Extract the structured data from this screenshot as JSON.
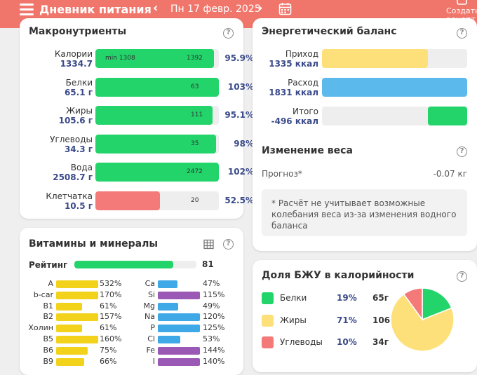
{
  "header": {
    "title": "Дневник питания",
    "prev": "‹",
    "next": "›",
    "date": "Пн 17 февр. 2025",
    "create_label": "Создать рецепт"
  },
  "macros": {
    "title": "Макронутриенты",
    "rows": [
      {
        "label": "Калории",
        "value": "1334.7",
        "target": "1392",
        "min": "min 1308",
        "percent": "95.9%",
        "fill": 0.959,
        "color": "#22d46a"
      },
      {
        "label": "Белки",
        "value": "65.1 г",
        "target": "63",
        "percent": "103%",
        "fill": 1.0,
        "color": "#22d46a"
      },
      {
        "label": "Жиры",
        "value": "105.6 г",
        "target": "111",
        "percent": "95.1%",
        "fill": 0.951,
        "color": "#22d46a"
      },
      {
        "label": "Углеводы",
        "value": "34.3 г",
        "target": "35",
        "percent": "98%",
        "fill": 0.98,
        "color": "#22d46a"
      },
      {
        "label": "Вода",
        "value": "2508.7 г",
        "target": "2472",
        "percent": "102%",
        "fill": 1.0,
        "color": "#22d46a"
      },
      {
        "label": "Клетчатка",
        "value": "10.5 г",
        "target": "20",
        "percent": "52.5%",
        "fill": 0.525,
        "color": "#f47a7a"
      }
    ]
  },
  "energy": {
    "title": "Энергетический баланс",
    "rows": [
      {
        "label": "Приход",
        "value": "1335 ккал",
        "fill": 0.73,
        "color": "#fde07a",
        "align": "left"
      },
      {
        "label": "Расход",
        "value": "1831 ккал",
        "fill": 1.0,
        "color": "#5bb9ec",
        "align": "left"
      },
      {
        "label": "Итого",
        "value": "-496 ккал",
        "fill": 0.27,
        "color": "#22d46a",
        "align": "right"
      }
    ],
    "weight_title": "Изменение веса",
    "forecast_label": "Прогноз*",
    "forecast_value": "-0.07 кг",
    "note": "* Расчёт не учитывает возможные колебания веса из-за изменения водного баланса"
  },
  "vitamins": {
    "title": "Витамины и минералы",
    "rating_label": "Рейтинг",
    "rating_value": "81",
    "rating_fill": 0.81,
    "left": [
      {
        "name": "A",
        "percent": "532%",
        "fill": 1.0,
        "color": "#f2d21a"
      },
      {
        "name": "b-car",
        "percent": "170%",
        "fill": 1.0,
        "color": "#f2d21a"
      },
      {
        "name": "B1",
        "percent": "61%",
        "fill": 0.61,
        "color": "#f2d21a"
      },
      {
        "name": "B2",
        "percent": "157%",
        "fill": 1.0,
        "color": "#f2d21a"
      },
      {
        "name": "Холин",
        "percent": "61%",
        "fill": 0.61,
        "color": "#f2d21a"
      },
      {
        "name": "B5",
        "percent": "160%",
        "fill": 1.0,
        "color": "#f2d21a"
      },
      {
        "name": "B6",
        "percent": "75%",
        "fill": 0.75,
        "color": "#f2d21a"
      },
      {
        "name": "B9",
        "percent": "66%",
        "fill": 0.66,
        "color": "#f2d21a"
      }
    ],
    "right": [
      {
        "name": "Ca",
        "percent": "47%",
        "fill": 0.47,
        "color": "#3fa8e6"
      },
      {
        "name": "Si",
        "percent": "115%",
        "fill": 1.0,
        "color": "#9b59b6"
      },
      {
        "name": "Mg",
        "percent": "49%",
        "fill": 0.49,
        "color": "#3fa8e6"
      },
      {
        "name": "Na",
        "percent": "120%",
        "fill": 1.0,
        "color": "#3fa8e6"
      },
      {
        "name": "P",
        "percent": "125%",
        "fill": 1.0,
        "color": "#3fa8e6"
      },
      {
        "name": "Cl",
        "percent": "53%",
        "fill": 0.53,
        "color": "#3fa8e6"
      },
      {
        "name": "Fe",
        "percent": "144%",
        "fill": 1.0,
        "color": "#9b59b6"
      },
      {
        "name": "I",
        "percent": "140%",
        "fill": 1.0,
        "color": "#9b59b6"
      }
    ]
  },
  "bju": {
    "title": "Доля БЖУ в калорийности",
    "items": [
      {
        "name": "Белки",
        "percent": "19%",
        "grams": "65г",
        "share": 19,
        "color": "#22d46a"
      },
      {
        "name": "Жиры",
        "percent": "71%",
        "grams": "106г",
        "share": 71,
        "color": "#fde07a"
      },
      {
        "name": "Углеводы",
        "percent": "10%",
        "grams": "34г",
        "share": 10,
        "color": "#f47a7a"
      }
    ]
  }
}
